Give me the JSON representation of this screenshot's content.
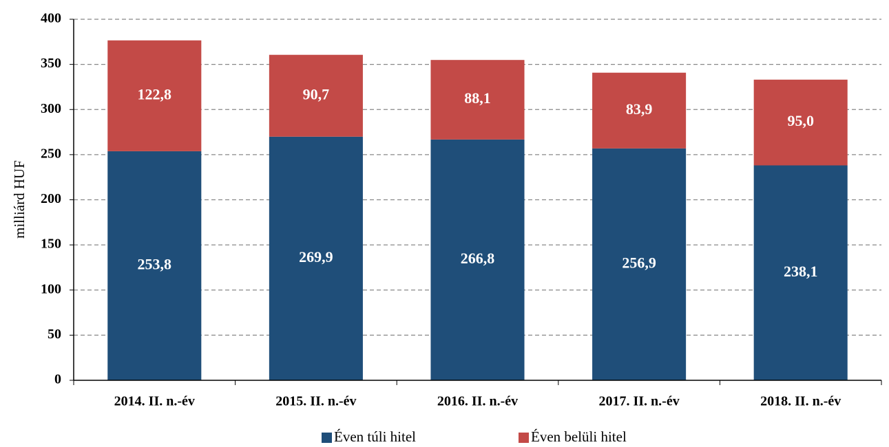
{
  "chart_data": {
    "type": "stacked-bar",
    "ylabel": "milliárd HUF",
    "categories": [
      "2014. II. n.-év",
      "2015. II. n.-év",
      "2016. II. n.-év",
      "2017. II. n.-év",
      "2018. II. n.-év"
    ],
    "series": [
      {
        "name": "Éven túli hitel",
        "color": "#1f4e79",
        "values": [
          253.8,
          269.9,
          266.8,
          256.9,
          238.1
        ],
        "value_labels": [
          "253,8",
          "269,9",
          "266,8",
          "256,9",
          "238,1"
        ]
      },
      {
        "name": "Éven belüli hitel",
        "color": "#c34a47",
        "values": [
          122.8,
          90.7,
          88.1,
          83.9,
          95.0
        ],
        "value_labels": [
          "122,8",
          "90,7",
          "88,1",
          "83,9",
          "95,0"
        ]
      }
    ],
    "ylim": [
      0,
      400
    ],
    "yticks": [
      0,
      50,
      100,
      150,
      200,
      250,
      300,
      350,
      400
    ],
    "grid": true,
    "legend": "bottom"
  }
}
